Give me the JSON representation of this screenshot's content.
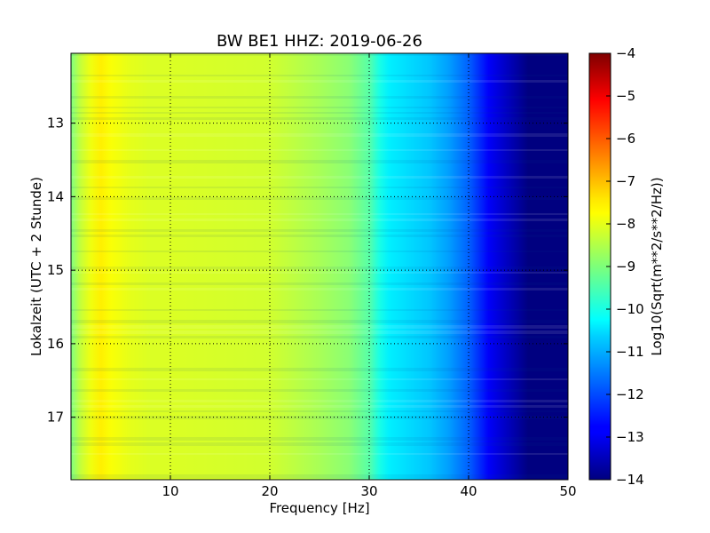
{
  "chart_data": {
    "type": "heatmap",
    "title": "BW BE1 HHZ: 2019-06-26",
    "xlabel": "Frequency [Hz]",
    "ylabel": "Lokalzeit (UTC + 2 Stunde)",
    "xlim": [
      0,
      50
    ],
    "ylim": [
      12.05,
      17.85
    ],
    "y_inverted": true,
    "x_ticks": [
      10,
      20,
      30,
      40,
      50
    ],
    "y_ticks": [
      13,
      14,
      15,
      16,
      17
    ],
    "grid": true,
    "grid_style": "dotted",
    "colormap": "jet",
    "colorbar": {
      "label": "Log10(Sqrt(m**2/s**2/Hz))",
      "range": [
        -14,
        -4
      ],
      "ticks": [
        -4,
        -5,
        -6,
        -7,
        -8,
        -9,
        -10,
        -11,
        -12,
        -13,
        -14
      ]
    },
    "frequency_profile": {
      "frequency_hz": [
        0,
        1,
        2,
        3,
        4,
        6,
        8,
        10,
        15,
        20,
        25,
        28,
        30,
        31,
        32,
        34,
        36,
        38,
        40,
        42,
        44,
        46,
        50
      ],
      "log10_amplitude": [
        -9,
        -8.3,
        -7.9,
        -7.6,
        -7.8,
        -8.0,
        -8.1,
        -8.1,
        -8.15,
        -8.2,
        -8.6,
        -8.9,
        -9.4,
        -10.0,
        -10.4,
        -10.6,
        -10.8,
        -11.2,
        -11.8,
        -12.8,
        -13.4,
        -14.0,
        -14.0
      ]
    }
  }
}
